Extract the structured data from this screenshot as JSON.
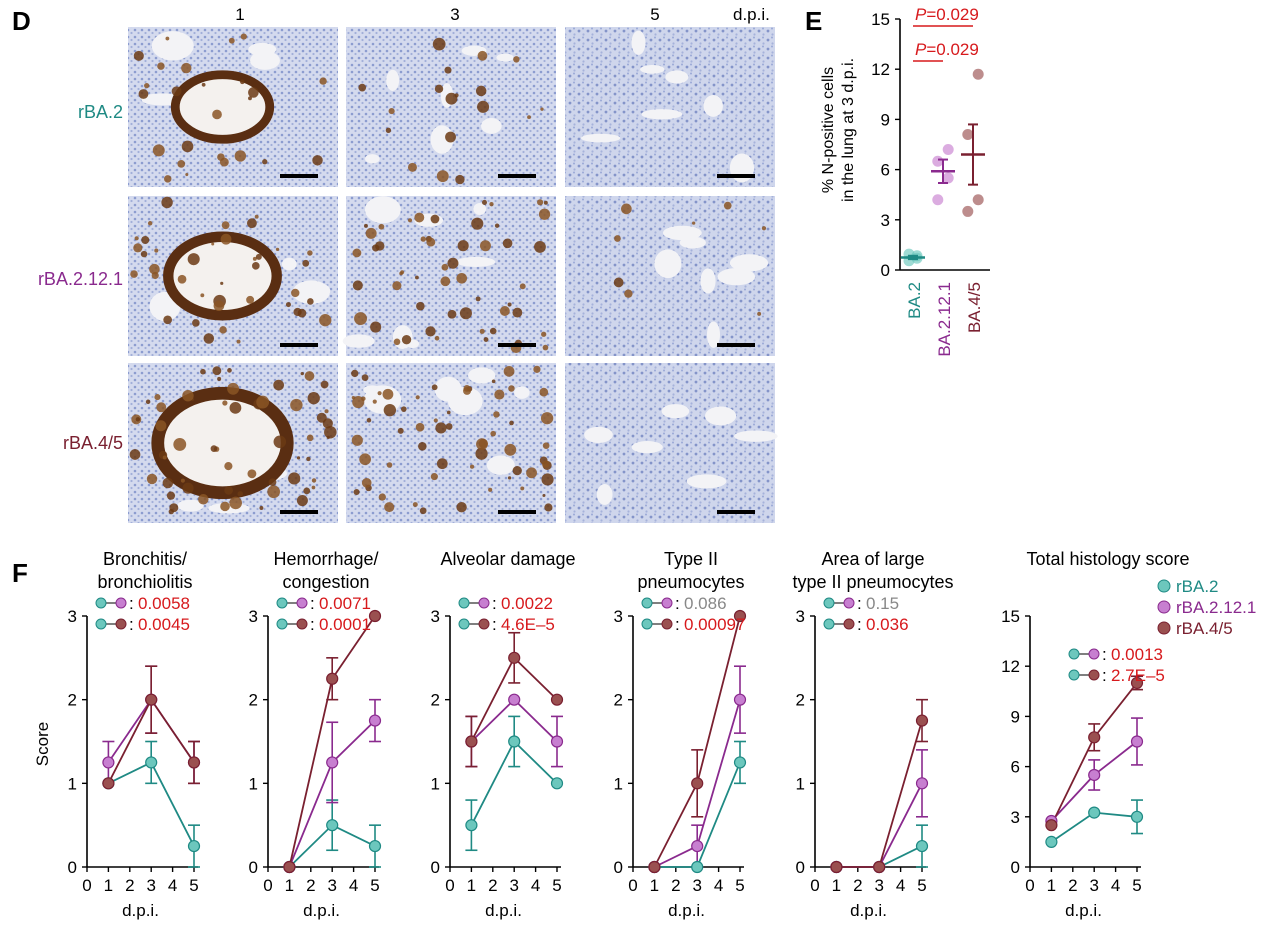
{
  "colors": {
    "rBA2": "#1f8a84",
    "rBA2121": "#8a2a8e",
    "rBA45": "#7a2030",
    "sig": "#d7191c",
    "ns": "#888888",
    "fill_rBA2": "#6cc7bd",
    "fill_rBA2121": "#c77fd0",
    "fill_rBA45": "#9a5050"
  },
  "panel_d": {
    "label": "D",
    "columns": [
      "1",
      "3",
      "5"
    ],
    "dpi_label": "d.p.i.",
    "rows": [
      {
        "label": "rBA.2",
        "stain": [
          0.35,
          0.25,
          0.0
        ]
      },
      {
        "label": "rBA.2.12.1",
        "stain": [
          0.55,
          0.75,
          0.12
        ]
      },
      {
        "label": "rBA.4/5",
        "stain": [
          0.85,
          0.9,
          0.0
        ]
      }
    ]
  },
  "panel_e": {
    "label": "E",
    "ylabel_line1": "% N-positive cells",
    "ylabel_line2": "in the lung at 3 d.p.i.",
    "pvalues": [
      "P=0.029",
      "P=0.029"
    ],
    "p_italic": "P",
    "p_rest": [
      "=0.029",
      "=0.029"
    ]
  },
  "panel_f": {
    "label": "F",
    "ylabel": "Score",
    "xlabel": "d.p.i."
  },
  "chart_data": [
    {
      "type": "scatter",
      "panel": "E",
      "ylabel": "% N-positive cells in the lung at 3 d.p.i.",
      "ylim": [
        0,
        15
      ],
      "yticks": [
        "0",
        "3",
        "6",
        "9",
        "12",
        "15"
      ],
      "categories": [
        "BA.2",
        "BA.2.12.1",
        "BA.4/5"
      ],
      "points": [
        [
          0.55,
          0.7,
          0.95,
          0.85
        ],
        [
          4.2,
          5.5,
          6.5,
          7.2
        ],
        [
          3.5,
          4.2,
          8.1,
          11.7
        ]
      ],
      "mean": [
        0.75,
        5.9,
        6.9
      ],
      "sem": [
        0.1,
        0.7,
        1.8
      ],
      "pvalues": [
        {
          "between": [
            "BA.2",
            "BA.4/5"
          ],
          "text": "P=0.029"
        },
        {
          "between": [
            "BA.2",
            "BA.2.12.1"
          ],
          "text": "P=0.029"
        }
      ]
    },
    {
      "type": "line",
      "panel": "F",
      "title": [
        "Bronchitis/",
        "bronchiolitis"
      ],
      "x": [
        1,
        3,
        5
      ],
      "ylim": [
        0,
        3
      ],
      "yticks": [
        "0",
        "1",
        "2",
        "3"
      ],
      "xticks": [
        "0",
        "1",
        "2",
        "3",
        "4",
        "5"
      ],
      "xlabel": "d.p.i.",
      "ylabel": "Score",
      "series": [
        {
          "name": "rBA.2",
          "values": [
            1.0,
            1.25,
            0.25
          ],
          "err": [
            0,
            0.25,
            0.25
          ]
        },
        {
          "name": "rBA.2.12.1",
          "values": [
            1.25,
            2.0,
            1.25
          ],
          "err": [
            0.25,
            0.4,
            0.25
          ]
        },
        {
          "name": "rBA.4/5",
          "values": [
            1.0,
            2.0,
            1.25
          ],
          "err": [
            0,
            0.4,
            0.25
          ]
        }
      ],
      "pvalues": [
        {
          "pair": "rBA.2-rBA.2.12.1",
          "text": "0.0058",
          "sig": true
        },
        {
          "pair": "rBA.2-rBA.4/5",
          "text": "0.0045",
          "sig": true
        }
      ]
    },
    {
      "type": "line",
      "panel": "F",
      "title": [
        "Hemorrhage/",
        "congestion"
      ],
      "x": [
        1,
        3,
        5
      ],
      "ylim": [
        0,
        3
      ],
      "yticks": [
        "0",
        "1",
        "2",
        "3"
      ],
      "xticks": [
        "0",
        "1",
        "2",
        "3",
        "4",
        "5"
      ],
      "xlabel": "d.p.i.",
      "series": [
        {
          "name": "rBA.2",
          "values": [
            0.0,
            0.5,
            0.25
          ],
          "err": [
            0,
            0.3,
            0.25
          ]
        },
        {
          "name": "rBA.2.12.1",
          "values": [
            0.0,
            1.25,
            1.75
          ],
          "err": [
            0,
            0.48,
            0.25
          ]
        },
        {
          "name": "rBA.4/5",
          "values": [
            0.0,
            2.25,
            3.0
          ],
          "err": [
            0,
            0.25,
            0
          ]
        }
      ],
      "pvalues": [
        {
          "pair": "rBA.2-rBA.2.12.1",
          "text": "0.0071",
          "sig": true
        },
        {
          "pair": "rBA.2-rBA.4/5",
          "text": "0.0001",
          "sig": true
        }
      ]
    },
    {
      "type": "line",
      "panel": "F",
      "title": [
        "Alveolar damage"
      ],
      "x": [
        1,
        3,
        5
      ],
      "ylim": [
        0,
        3
      ],
      "yticks": [
        "0",
        "1",
        "2",
        "3"
      ],
      "xticks": [
        "0",
        "1",
        "2",
        "3",
        "4",
        "5"
      ],
      "xlabel": "d.p.i.",
      "series": [
        {
          "name": "rBA.2",
          "values": [
            0.5,
            1.5,
            1.0
          ],
          "err": [
            0.3,
            0.3,
            0
          ]
        },
        {
          "name": "rBA.2.12.1",
          "values": [
            1.5,
            2.0,
            1.5
          ],
          "err": [
            0.3,
            0,
            0.3
          ]
        },
        {
          "name": "rBA.4/5",
          "values": [
            1.5,
            2.5,
            2.0
          ],
          "err": [
            0.3,
            0.3,
            0
          ]
        }
      ],
      "pvalues": [
        {
          "pair": "rBA.2-rBA.2.12.1",
          "text": "0.0022",
          "sig": true
        },
        {
          "pair": "rBA.2-rBA.4/5",
          "text": "4.6E–5",
          "sig": true
        }
      ]
    },
    {
      "type": "line",
      "panel": "F",
      "title": [
        "Type II",
        "pneumocytes"
      ],
      "x": [
        1,
        3,
        5
      ],
      "ylim": [
        0,
        3
      ],
      "yticks": [
        "0",
        "1",
        "2",
        "3"
      ],
      "xticks": [
        "0",
        "1",
        "2",
        "3",
        "4",
        "5"
      ],
      "xlabel": "d.p.i.",
      "series": [
        {
          "name": "rBA.2",
          "values": [
            0.0,
            0.0,
            1.25
          ],
          "err": [
            0,
            0,
            0.25
          ]
        },
        {
          "name": "rBA.2.12.1",
          "values": [
            0.0,
            0.25,
            2.0
          ],
          "err": [
            0,
            0.25,
            0.4
          ]
        },
        {
          "name": "rBA.4/5",
          "values": [
            0.0,
            1.0,
            3.0
          ],
          "err": [
            0,
            0.4,
            0
          ]
        }
      ],
      "pvalues": [
        {
          "pair": "rBA.2-rBA.2.12.1",
          "text": "0.086",
          "sig": false
        },
        {
          "pair": "rBA.2-rBA.4/5",
          "text": "0.00097",
          "sig": true
        }
      ]
    },
    {
      "type": "line",
      "panel": "F",
      "title": [
        "Area of large",
        "type II pneumocytes"
      ],
      "x": [
        1,
        3,
        5
      ],
      "ylim": [
        0,
        3
      ],
      "yticks": [
        "0",
        "1",
        "2",
        "3"
      ],
      "xticks": [
        "0",
        "1",
        "2",
        "3",
        "4",
        "5"
      ],
      "xlabel": "d.p.i.",
      "series": [
        {
          "name": "rBA.2",
          "values": [
            0.0,
            0.0,
            0.25
          ],
          "err": [
            0,
            0,
            0.25
          ]
        },
        {
          "name": "rBA.2.12.1",
          "values": [
            0.0,
            0.0,
            1.0
          ],
          "err": [
            0,
            0,
            0.4
          ]
        },
        {
          "name": "rBA.4/5",
          "values": [
            0.0,
            0.0,
            1.75
          ],
          "err": [
            0,
            0,
            0.25
          ]
        }
      ],
      "pvalues": [
        {
          "pair": "rBA.2-rBA.2.12.1",
          "text": "0.15",
          "sig": false
        },
        {
          "pair": "rBA.2-rBA.4/5",
          "text": "0.036",
          "sig": true
        }
      ]
    },
    {
      "type": "line",
      "panel": "F",
      "title": [
        "Total histology score"
      ],
      "x": [
        1,
        3,
        5
      ],
      "ylim": [
        0,
        15
      ],
      "yticks": [
        "0",
        "3",
        "6",
        "9",
        "12",
        "15"
      ],
      "xticks": [
        "0",
        "1",
        "2",
        "3",
        "4",
        "5"
      ],
      "xlabel": "d.p.i.",
      "legend": [
        "rBA.2",
        "rBA.2.12.1",
        "rBA.4/5"
      ],
      "series": [
        {
          "name": "rBA.2",
          "values": [
            1.5,
            3.25,
            3.0
          ],
          "err": [
            0,
            0,
            1.0
          ]
        },
        {
          "name": "rBA.2.12.1",
          "values": [
            2.75,
            5.5,
            7.5
          ],
          "err": [
            0,
            0.9,
            1.4
          ]
        },
        {
          "name": "rBA.4/5",
          "values": [
            2.5,
            7.75,
            11.0
          ],
          "err": [
            0,
            0.8,
            0.4
          ]
        }
      ],
      "pvalues": [
        {
          "pair": "rBA.2-rBA.2.12.1",
          "text": "0.0013",
          "sig": true
        },
        {
          "pair": "rBA.2-rBA.4/5",
          "text": "2.7E–5",
          "sig": true
        }
      ]
    }
  ]
}
